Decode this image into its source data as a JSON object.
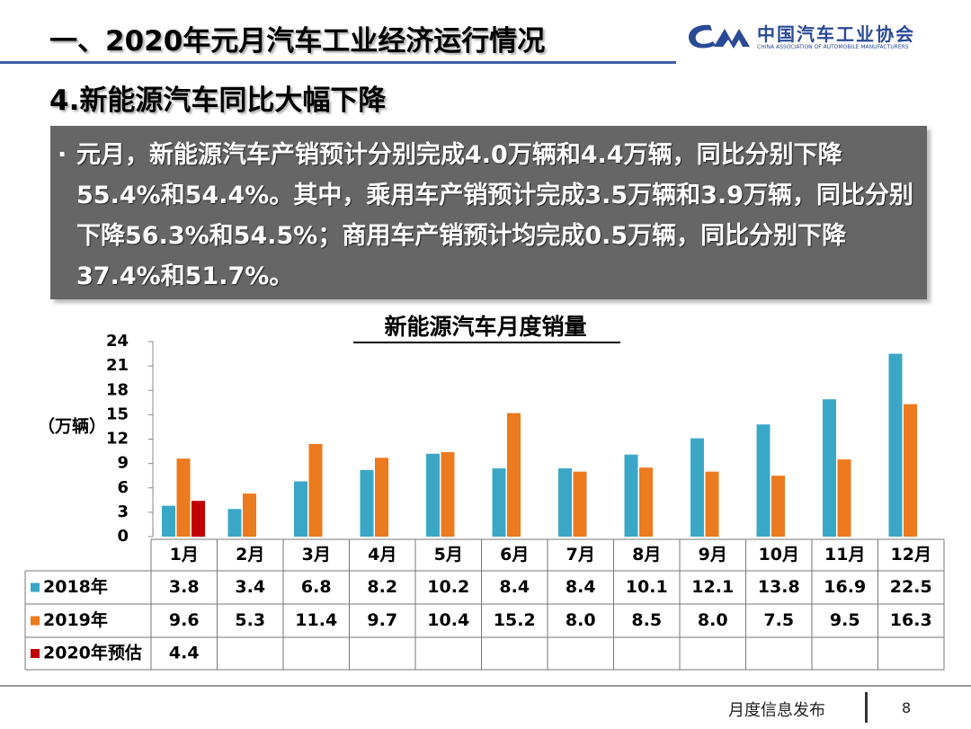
{
  "header": {
    "title": "一、2020年元月汽车工业经济运行情况",
    "section": "4.新能源汽车同比大幅下降",
    "org_cn": "中国汽车工业协会",
    "org_en": "CHINA ASSOCIATION OF AUTOMOBILE MANUFACTURERS"
  },
  "bullet": "元月，新能源汽车产销预计分别完成4.0万辆和4.4万辆，同比分别下降55.4%和54.4%。其中，乘用车产销预计完成3.5万辆和3.9万辆，同比分别下降56.3%和54.5%；商用车产销预计均完成0.5万辆，同比分别下降37.4%和51.7%。",
  "footer": {
    "label": "月度信息发布",
    "page": "8"
  },
  "chart_data": {
    "type": "bar",
    "title": "新能源汽车月度销量",
    "y_label": "（万辆）",
    "categories": [
      "1月",
      "2月",
      "3月",
      "4月",
      "5月",
      "6月",
      "7月",
      "8月",
      "9月",
      "10月",
      "11月",
      "12月"
    ],
    "series": [
      {
        "name": "2018年",
        "color": "#3ba7c7",
        "values": [
          3.8,
          3.4,
          6.8,
          8.2,
          10.2,
          8.4,
          8.4,
          10.1,
          12.1,
          13.8,
          16.9,
          22.5
        ],
        "value_labels": [
          "3.8",
          "3.4",
          "6.8",
          "8.2",
          "10.2",
          "8.4",
          "8.4",
          "10.1",
          "12.1",
          "13.8",
          "16.9",
          "22.5"
        ]
      },
      {
        "name": "2019年",
        "color": "#ec7a1e",
        "values": [
          9.6,
          5.3,
          11.4,
          9.7,
          10.4,
          15.2,
          8.0,
          8.5,
          8.0,
          7.5,
          9.5,
          16.3
        ],
        "value_labels": [
          "9.6",
          "5.3",
          "11.4",
          "9.7",
          "10.4",
          "15.2",
          "8.0",
          "8.5",
          "8.0",
          "7.5",
          "9.5",
          "16.3"
        ]
      },
      {
        "name": "2020年预估",
        "color": "#c00000",
        "values": [
          4.4,
          null,
          null,
          null,
          null,
          null,
          null,
          null,
          null,
          null,
          null,
          null
        ],
        "value_labels": [
          "4.4",
          null,
          null,
          null,
          null,
          null,
          null,
          null,
          null,
          null,
          null,
          null
        ]
      }
    ],
    "ylim": [
      0,
      24
    ],
    "yticks": [
      0,
      3,
      6,
      9,
      12,
      15,
      18,
      21,
      24
    ]
  }
}
